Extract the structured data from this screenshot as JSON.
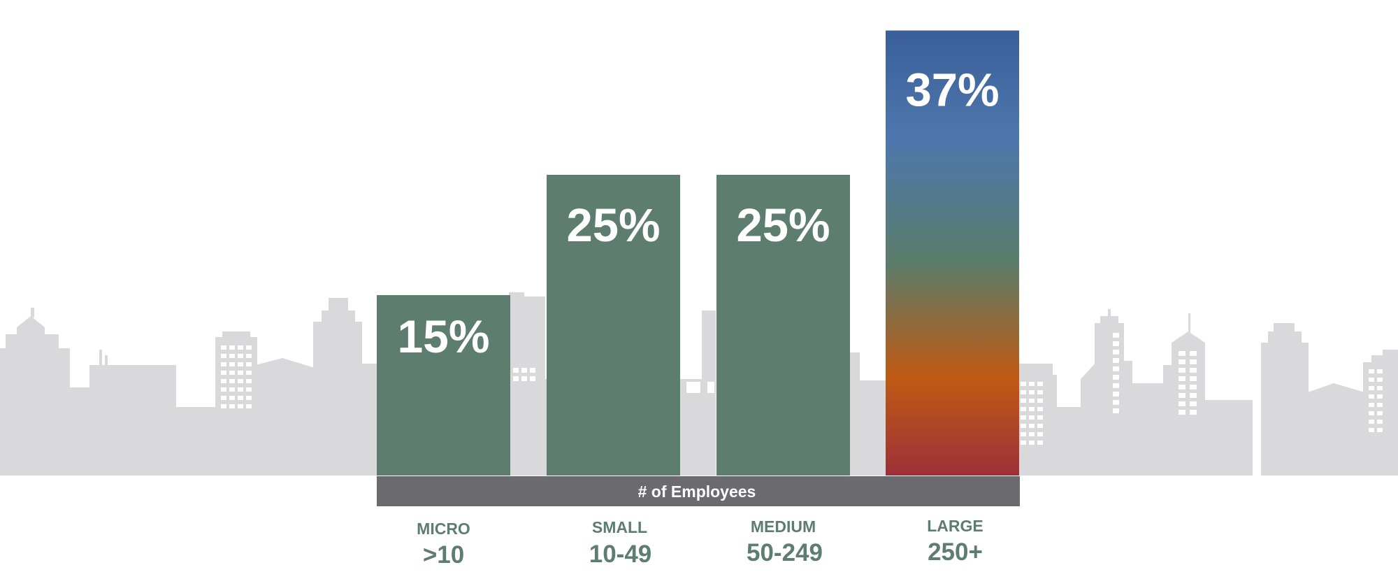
{
  "chart_data": {
    "type": "bar",
    "title": "",
    "xlabel": "# of Employees",
    "ylabel": "",
    "categories": [
      "MICRO",
      "SMALL",
      "MEDIUM",
      "LARGE"
    ],
    "ranges": [
      ">10",
      "10-49",
      "50-249",
      "250+"
    ],
    "values": [
      15,
      25,
      25,
      37
    ],
    "value_labels": [
      "15%",
      "25%",
      "25%",
      "37%"
    ],
    "ylim": [
      0,
      50
    ],
    "grid": false,
    "legend": "none"
  },
  "colors": {
    "bar": "#5d7d6e",
    "highlight_top": "#3a5f99",
    "highlight_upper": "#4e78ad",
    "highlight_mid": "#5b7d6b",
    "highlight_low": "#c05a14",
    "highlight_bottom": "#9c3038",
    "axis_band": "#6a6a6f",
    "skyline": "#d9d9db",
    "category_text": "#5d7d6e"
  }
}
